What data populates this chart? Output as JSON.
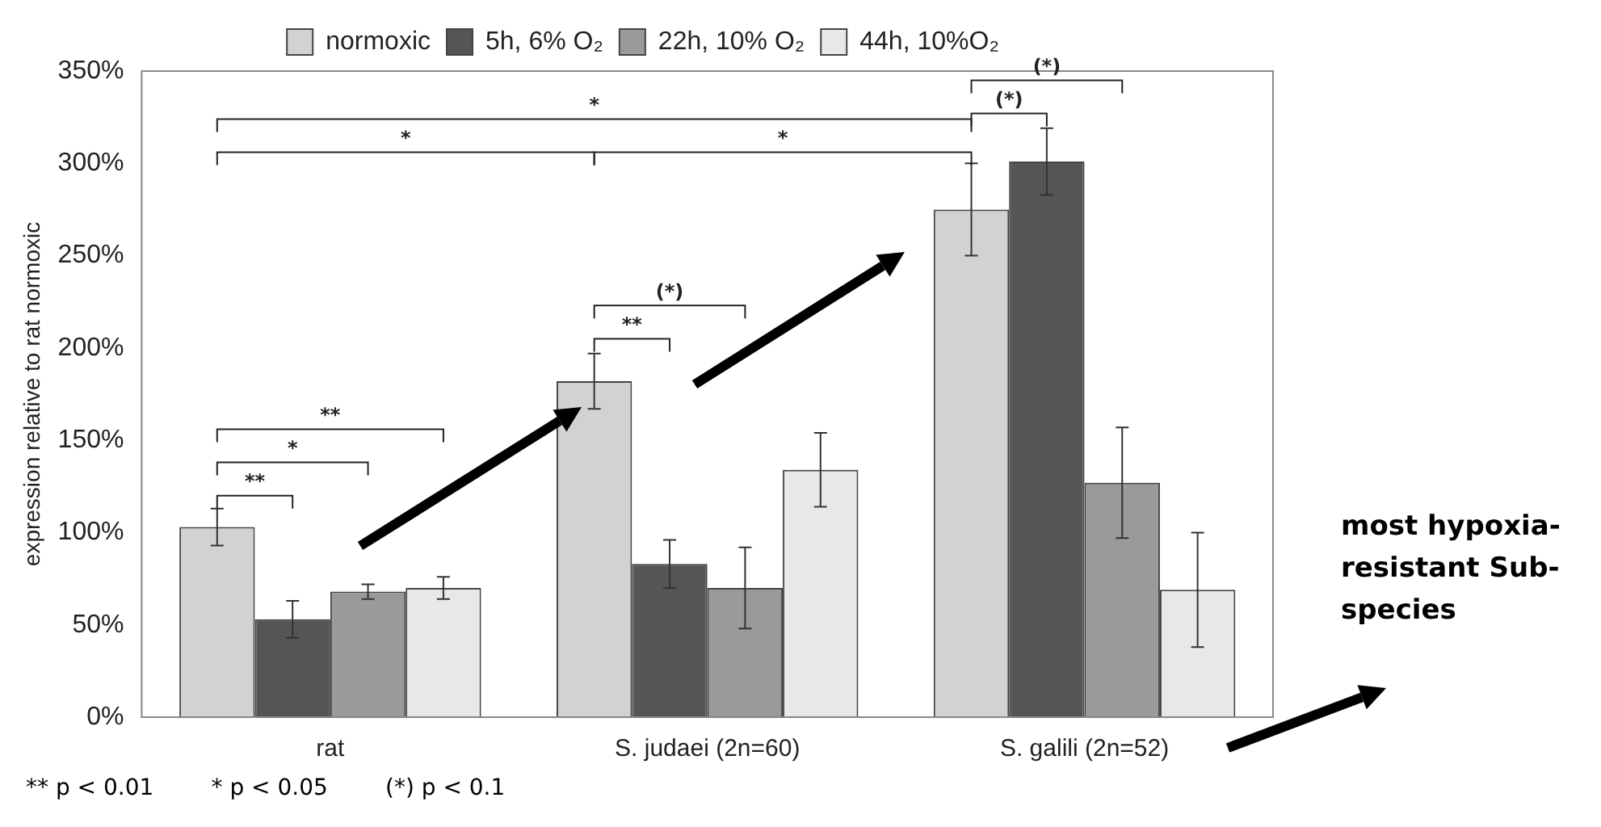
{
  "chart_data": {
    "type": "bar",
    "ylabel": "expression relative to rat normoxic",
    "categories": [
      "rat",
      "S. judaei (2n=60)",
      "S. galili (2n=52)"
    ],
    "series": [
      {
        "name": "normoxic",
        "color": "#d2d2d2",
        "values": [
          103,
          182,
          275
        ],
        "errors": [
          10,
          15,
          25
        ]
      },
      {
        "name": "5h, 6% O₂",
        "color": "#555555",
        "values": [
          53,
          83,
          301
        ],
        "errors": [
          10,
          13,
          18
        ]
      },
      {
        "name": "22h, 10% O₂",
        "color": "#9a9a9a",
        "values": [
          68,
          70,
          127
        ],
        "errors": [
          4,
          22,
          30
        ]
      },
      {
        "name": "44h, 10%O₂",
        "color": "#e8e8e8",
        "values": [
          70,
          134,
          69
        ],
        "errors": [
          6,
          20,
          31
        ]
      }
    ],
    "ylim": [
      0,
      350
    ],
    "yticks": [
      {
        "value": 0,
        "label": "0%"
      },
      {
        "value": 50,
        "label": "50%"
      },
      {
        "value": 100,
        "label": "100%"
      },
      {
        "value": 150,
        "label": "150%"
      },
      {
        "value": 200,
        "label": "200%"
      },
      {
        "value": 250,
        "label": "250%"
      },
      {
        "value": 300,
        "label": "300%"
      },
      {
        "value": 350,
        "label": "350%"
      }
    ],
    "grid": false,
    "legend": "top",
    "annotations": [
      "**",
      "*",
      "**",
      "**",
      "(*)",
      "*",
      "*",
      "*",
      "(*)",
      "(*)",
      "** p < 0.01        * p < 0.05        (*) p < 0.1",
      "most hypoxia-resistant Sub-species"
    ]
  }
}
